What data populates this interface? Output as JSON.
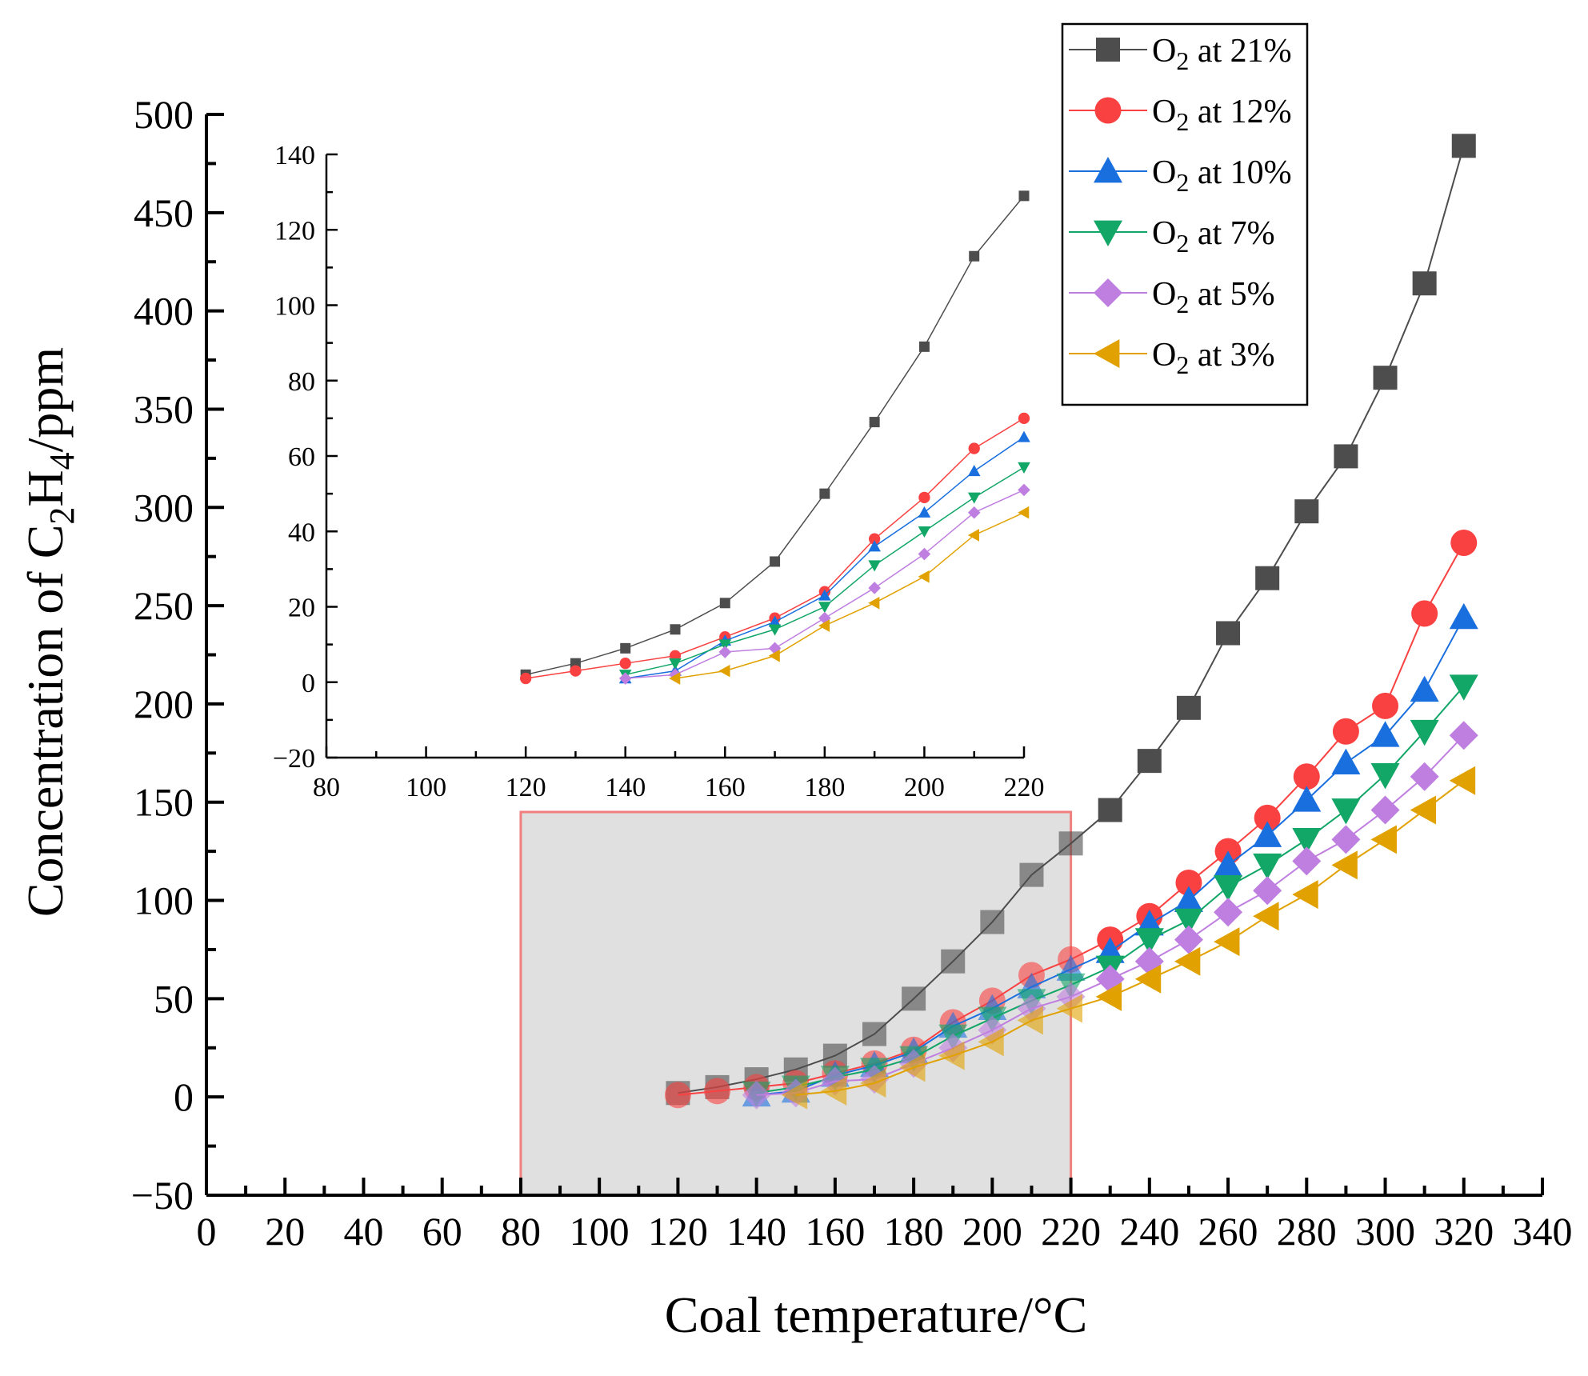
{
  "chart_data": {
    "type": "line",
    "xlabel": "Coal temperature/°C",
    "ylabel": {
      "main": "Concentration of C",
      "sub1": "2",
      "mid": "H",
      "sub2": "4",
      "tail": "/ppm"
    },
    "xlim": [
      0,
      340
    ],
    "ylim": [
      -50,
      500
    ],
    "x_ticks": [
      "0",
      "20",
      "40",
      "60",
      "80",
      "100",
      "120",
      "140",
      "160",
      "180",
      "200",
      "220",
      "240",
      "260",
      "280",
      "300",
      "320",
      "340"
    ],
    "y_ticks": [
      "−50",
      "0",
      "50",
      "100",
      "150",
      "200",
      "250",
      "300",
      "350",
      "400",
      "450",
      "500"
    ],
    "highlight_region": {
      "x": [
        80,
        220
      ],
      "y": [
        -50,
        145
      ],
      "color": "#e0e0e0",
      "border": "#f08080"
    },
    "legend_position": "top-right",
    "series": [
      {
        "name": "O2 at 21%",
        "prefix": "O",
        "sub": "2",
        "suffix": " at 21%",
        "color": "#4d4d4d",
        "marker": "square",
        "x": [
          120,
          130,
          140,
          150,
          160,
          170,
          180,
          190,
          200,
          210,
          220,
          230,
          240,
          250,
          260,
          270,
          280,
          290,
          300,
          310,
          320
        ],
        "y": [
          2,
          5,
          9,
          14,
          21,
          32,
          50,
          69,
          89,
          113,
          129,
          146,
          171,
          198,
          236,
          264,
          298,
          326,
          366,
          414,
          484
        ]
      },
      {
        "name": "O2 at 12%",
        "prefix": "O",
        "sub": "2",
        "suffix": " at 12%",
        "color": "#f94141",
        "marker": "circle",
        "x": [
          120,
          130,
          140,
          150,
          160,
          170,
          180,
          190,
          200,
          210,
          220,
          230,
          240,
          250,
          260,
          270,
          280,
          290,
          300,
          310,
          320
        ],
        "y": [
          1,
          3,
          5,
          7,
          12,
          17,
          24,
          38,
          49,
          62,
          70,
          80,
          92,
          109,
          125,
          142,
          163,
          186,
          199,
          246,
          282
        ]
      },
      {
        "name": "O2 at 10%",
        "prefix": "O",
        "sub": "2",
        "suffix": " at 10%",
        "color": "#1a6fdf",
        "marker": "triangle-up",
        "x": [
          140,
          150,
          160,
          170,
          180,
          190,
          200,
          210,
          220,
          230,
          240,
          250,
          260,
          270,
          280,
          290,
          300,
          310,
          320
        ],
        "y": [
          1,
          3,
          11,
          16,
          23,
          36,
          45,
          56,
          65,
          74,
          88,
          100,
          118,
          133,
          151,
          170,
          184,
          207,
          244
        ]
      },
      {
        "name": "O2 at 7%",
        "prefix": "O",
        "sub": "2",
        "suffix": " at 7%",
        "color": "#12a667",
        "marker": "triangle-down",
        "x": [
          140,
          150,
          160,
          170,
          180,
          190,
          200,
          210,
          220,
          230,
          240,
          250,
          260,
          270,
          280,
          290,
          300,
          310,
          320
        ],
        "y": [
          2,
          5,
          10,
          14,
          20,
          31,
          40,
          49,
          57,
          66,
          80,
          90,
          107,
          118,
          131,
          146,
          164,
          186,
          209
        ]
      },
      {
        "name": "O2 at 5%",
        "prefix": "O",
        "sub": "2",
        "suffix": " at 5%",
        "color": "#bf7fe0",
        "marker": "diamond",
        "x": [
          140,
          150,
          160,
          170,
          180,
          190,
          200,
          210,
          220,
          230,
          240,
          250,
          260,
          270,
          280,
          290,
          300,
          310,
          320
        ],
        "y": [
          1,
          2,
          8,
          9,
          17,
          25,
          34,
          45,
          51,
          60,
          69,
          80,
          94,
          105,
          120,
          131,
          146,
          163,
          184
        ]
      },
      {
        "name": "O2 at 3%",
        "prefix": "O",
        "sub": "2",
        "suffix": " at 3%",
        "color": "#e1a100",
        "marker": "triangle-left",
        "x": [
          150,
          160,
          170,
          180,
          190,
          200,
          210,
          220,
          230,
          240,
          250,
          260,
          270,
          280,
          290,
          300,
          310,
          320
        ],
        "y": [
          1,
          3,
          7,
          15,
          21,
          28,
          39,
          45,
          51,
          60,
          69,
          79,
          92,
          103,
          118,
          131,
          146,
          161
        ]
      }
    ],
    "inset": {
      "xlim": [
        80,
        220
      ],
      "ylim": [
        -20,
        140
      ],
      "x_ticks": [
        "80",
        "100",
        "120",
        "140",
        "160",
        "180",
        "200",
        "220"
      ],
      "y_ticks": [
        "−20",
        "0",
        "20",
        "40",
        "60",
        "80",
        "100",
        "120",
        "140"
      ]
    }
  }
}
